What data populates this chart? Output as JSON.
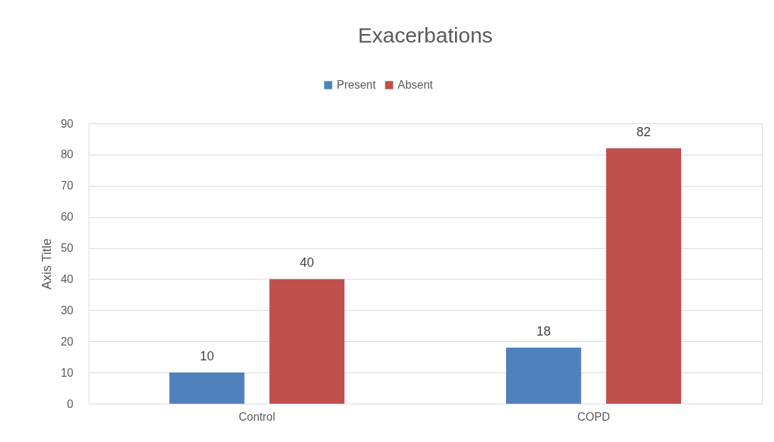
{
  "chart_data": {
    "type": "bar",
    "title": "Exacerbations",
    "ylabel": "Axis Title",
    "categories": [
      "Control",
      "COPD"
    ],
    "series": [
      {
        "name": "Present",
        "color": "#4f81bd",
        "values": [
          10,
          18
        ]
      },
      {
        "name": "Absent",
        "color": "#c0504d",
        "values": [
          40,
          82
        ]
      }
    ],
    "ylim": [
      0,
      90
    ],
    "yticks": [
      0,
      10,
      20,
      30,
      40,
      50,
      60,
      70,
      80,
      90
    ],
    "grid": "y",
    "legend": "top",
    "data_labels": true
  }
}
